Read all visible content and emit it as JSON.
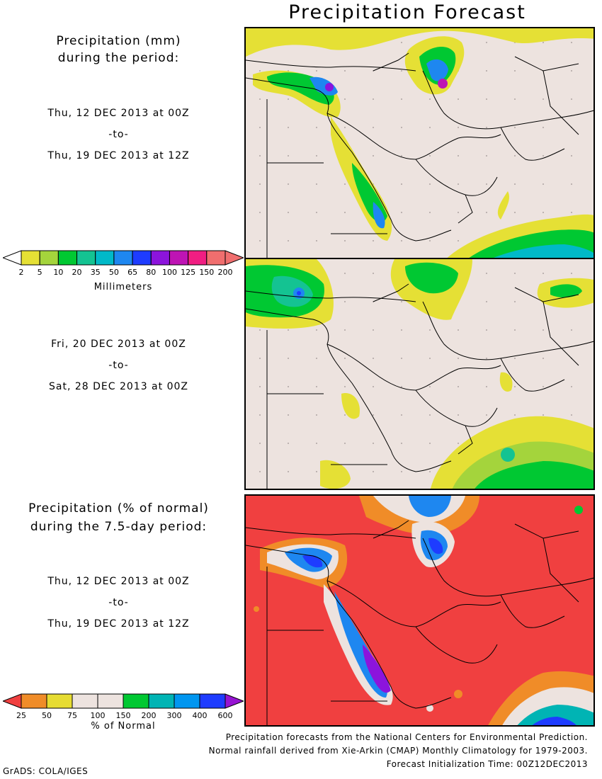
{
  "title": "Precipitation Forecast",
  "panel1": {
    "heading_line1": "Precipitation (mm)",
    "heading_line2": "during the period:",
    "start": "Thu, 12 DEC 2013 at 00Z",
    "sep": "-to-",
    "end": "Thu, 19 DEC 2013 at 12Z"
  },
  "panel2": {
    "start": "Fri, 20 DEC 2013 at 00Z",
    "sep": "-to-",
    "end": "Sat, 28 DEC 2013 at 00Z"
  },
  "panel3": {
    "heading_line1": "Precipitation (% of normal)",
    "heading_line2": "during the 7.5-day period:",
    "start": "Thu, 12 DEC 2013 at 00Z",
    "sep": "-to-",
    "end": "Thu, 19 DEC 2013 at 12Z"
  },
  "colorbar_mm": {
    "title": "Millimeters",
    "ticks": [
      "2",
      "5",
      "10",
      "20",
      "35",
      "50",
      "65",
      "80",
      "100",
      "125",
      "150",
      "200"
    ],
    "colors": [
      "#ffffff",
      "#e5e035",
      "#a4d43c",
      "#00c832",
      "#14c392",
      "#00b9c8",
      "#1e87f0",
      "#1e3cff",
      "#8c14dc",
      "#be14b4",
      "#f01e82",
      "#f06e6e"
    ]
  },
  "colorbar_pct": {
    "title": "% of Normal",
    "ticks": [
      "25",
      "50",
      "75",
      "100",
      "150",
      "200",
      "300",
      "400",
      "600"
    ],
    "colors": [
      "#f04040",
      "#f08c28",
      "#e6dc32",
      "#ede3df",
      "#ede3df",
      "#00c832",
      "#00b4b4",
      "#0096f0",
      "#1e3cff",
      "#9614d2"
    ]
  },
  "credits": {
    "line1": "Precipitation forecasts from the National Centers for Environmental Prediction.",
    "line2": "Normal rainfall derived from Xie-Arkin (CMAP) Monthly Climatology for 1979-2003.",
    "line3": "Forecast Initialization Time: 00Z12DEC2013"
  },
  "footer": "GrADS: COLA/IGES",
  "colors": {
    "land": "#ede3df",
    "pct_background": "#f04040"
  }
}
